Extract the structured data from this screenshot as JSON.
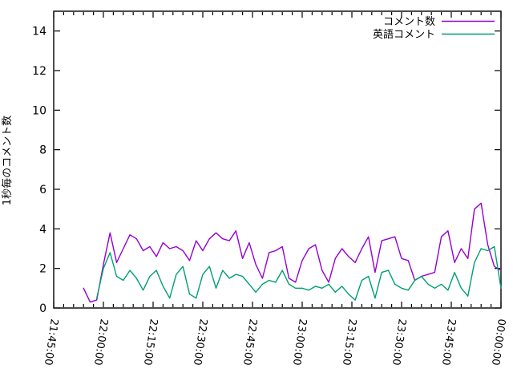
{
  "chart": {
    "background_color": "#ffffff",
    "axis_color": "#000000"
  },
  "chart_data": {
    "type": "line",
    "title": "",
    "xlabel": "",
    "ylabel": "1秒毎のコメント数",
    "ylim": [
      0,
      15
    ],
    "x_axis_start": "21:45:00",
    "x_axis_end": "00:00:00",
    "x_range_minutes": 135,
    "x_major_step_min": 15,
    "x_minor_step_min": 3,
    "grid": false,
    "legend_position": "top-right-inside",
    "x_tick_labels": [
      "21:45:00",
      "22:00:00",
      "22:15:00",
      "22:30:00",
      "22:45:00",
      "23:00:00",
      "23:15:00",
      "23:30:00",
      "23:45:00",
      "00:00:00"
    ],
    "y_tick_values": [
      0,
      2,
      4,
      6,
      8,
      10,
      12,
      14
    ],
    "series": [
      {
        "name": "コメント数",
        "color": "#9400d3",
        "times": [
          "21:54",
          "21:56",
          "21:58",
          "22:00",
          "22:02",
          "22:04",
          "22:06",
          "22:08",
          "22:10",
          "22:12",
          "22:14",
          "22:16",
          "22:18",
          "22:20",
          "22:22",
          "22:24",
          "22:26",
          "22:28",
          "22:30",
          "22:32",
          "22:34",
          "22:36",
          "22:38",
          "22:40",
          "22:42",
          "22:44",
          "22:46",
          "22:48",
          "22:50",
          "22:52",
          "22:54",
          "22:56",
          "22:58",
          "23:00",
          "23:02",
          "23:04",
          "23:06",
          "23:08",
          "23:10",
          "23:12",
          "23:14",
          "23:16",
          "23:18",
          "23:20",
          "23:22",
          "23:24",
          "23:26",
          "23:28",
          "23:30",
          "23:32",
          "23:34",
          "23:36",
          "23:38",
          "23:40",
          "23:42",
          "23:44",
          "23:46",
          "23:48",
          "23:50",
          "23:52",
          "23:54",
          "23:56",
          "23:58",
          "00:00"
        ],
        "values": [
          1.0,
          0.3,
          0.4,
          2.2,
          3.8,
          2.3,
          3.0,
          3.7,
          3.5,
          2.9,
          3.1,
          2.6,
          3.3,
          3.0,
          3.1,
          2.9,
          2.4,
          3.4,
          2.9,
          3.5,
          3.8,
          3.5,
          3.4,
          3.9,
          2.5,
          3.3,
          2.2,
          1.5,
          2.8,
          2.9,
          3.1,
          1.5,
          1.3,
          2.4,
          3.0,
          3.2,
          1.9,
          1.3,
          2.5,
          3.0,
          2.6,
          2.3,
          3.0,
          3.6,
          1.8,
          3.4,
          3.5,
          3.6,
          2.5,
          2.4,
          1.4,
          1.6,
          1.7,
          1.8,
          3.6,
          3.9,
          2.3,
          3.0,
          2.5,
          5.0,
          5.3,
          3.2,
          2.1,
          1.9
        ]
      },
      {
        "name": "英語コメント",
        "color": "#009e73",
        "times": [
          "21:58",
          "22:00",
          "22:02",
          "22:04",
          "22:06",
          "22:08",
          "22:10",
          "22:12",
          "22:14",
          "22:16",
          "22:18",
          "22:20",
          "22:22",
          "22:24",
          "22:26",
          "22:28",
          "22:30",
          "22:32",
          "22:34",
          "22:36",
          "22:38",
          "22:40",
          "22:42",
          "22:44",
          "22:46",
          "22:48",
          "22:50",
          "22:52",
          "22:54",
          "22:56",
          "22:58",
          "23:00",
          "23:02",
          "23:04",
          "23:06",
          "23:08",
          "23:10",
          "23:12",
          "23:14",
          "23:16",
          "23:18",
          "23:20",
          "23:22",
          "23:24",
          "23:26",
          "23:28",
          "23:30",
          "23:32",
          "23:34",
          "23:36",
          "23:38",
          "23:40",
          "23:42",
          "23:44",
          "23:46",
          "23:48",
          "23:50",
          "23:52",
          "23:54",
          "23:56",
          "23:58",
          "00:00"
        ],
        "values": [
          0.5,
          2.0,
          2.8,
          1.6,
          1.4,
          1.9,
          1.5,
          0.9,
          1.6,
          1.9,
          1.1,
          0.5,
          1.7,
          2.1,
          0.7,
          0.5,
          1.7,
          2.1,
          1.0,
          1.9,
          1.5,
          1.7,
          1.6,
          1.2,
          0.8,
          1.2,
          1.4,
          1.3,
          1.9,
          1.2,
          1.0,
          1.0,
          0.9,
          1.1,
          1.0,
          1.2,
          0.8,
          1.1,
          0.7,
          0.4,
          1.4,
          1.6,
          0.5,
          1.8,
          1.9,
          1.2,
          1.0,
          0.9,
          1.4,
          1.6,
          1.2,
          1.0,
          1.2,
          0.9,
          1.8,
          1.0,
          0.6,
          2.3,
          3.0,
          2.9,
          3.1,
          1.0
        ]
      }
    ]
  }
}
